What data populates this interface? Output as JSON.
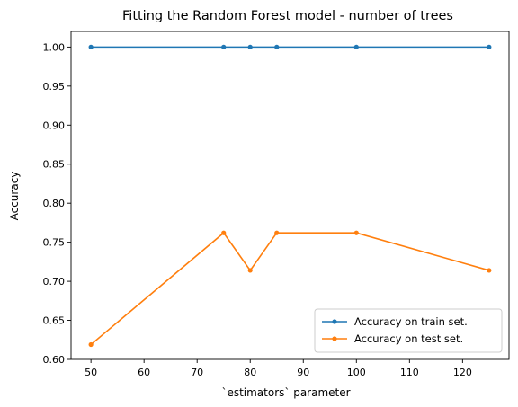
{
  "chart_data": {
    "type": "line",
    "title": "Fitting the Random Forest model - number of trees",
    "xlabel": "`estimators` parameter",
    "ylabel": "Accuracy",
    "xlim": [
      46.25,
      128.75
    ],
    "ylim": [
      0.6,
      1.02
    ],
    "xticks": [
      50,
      60,
      70,
      80,
      90,
      100,
      110,
      120
    ],
    "yticks": [
      0.6,
      0.65,
      0.7,
      0.75,
      0.8,
      0.85,
      0.9,
      0.95,
      1.0
    ],
    "ytick_labels": [
      "0.60",
      "0.65",
      "0.70",
      "0.75",
      "0.80",
      "0.85",
      "0.90",
      "0.95",
      "1.00"
    ],
    "grid": false,
    "legend_position": "lower-right",
    "x": [
      50,
      75,
      80,
      85,
      100,
      125
    ],
    "series": [
      {
        "name": "Accuracy on train set.",
        "color": "#1f77b4",
        "values": [
          1.0,
          1.0,
          1.0,
          1.0,
          1.0,
          1.0
        ]
      },
      {
        "name": "Accuracy on test set.",
        "color": "#ff7f0e",
        "values": [
          0.619,
          0.762,
          0.714,
          0.762,
          0.762,
          0.714
        ]
      }
    ]
  }
}
